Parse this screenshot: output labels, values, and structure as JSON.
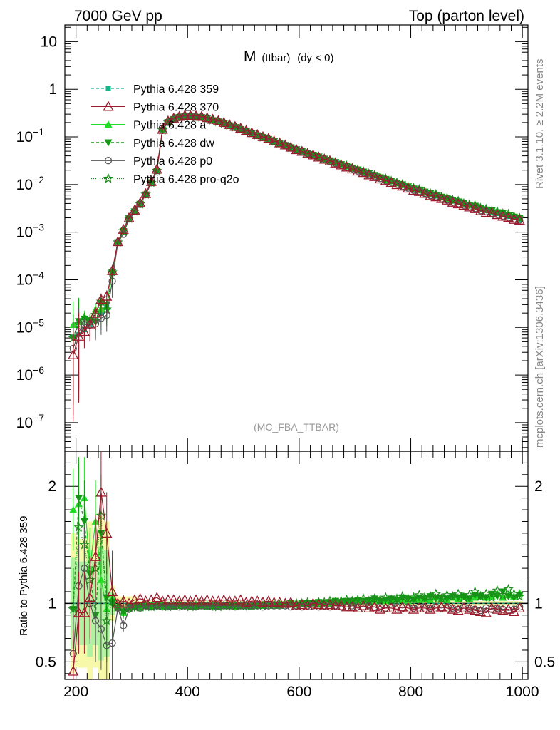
{
  "header": {
    "left": "7000 GeV pp",
    "right": "Top (parton level)"
  },
  "side_labels": {
    "rivet": "Rivet 3.1.10, ≥ 2.2M events",
    "mcplots": "mcplots.cern.ch [arXiv:1306.3436]"
  },
  "watermark": "(MC_FBA_TTBAR)",
  "plot_title": {
    "main": "M",
    "sub": "(ttbar)",
    "cond": "(dy < 0)"
  },
  "ratio_ylabel": "Ratio to Pythia 6.428 359",
  "chart_data": [
    {
      "type": "line",
      "panel": "main",
      "title": "M (ttbar) (dy < 0)",
      "xlabel": "",
      "ylabel": "",
      "xlim": [
        180,
        1010
      ],
      "ylim_log10": [
        -7.6,
        1.35
      ],
      "yscale": "log",
      "y_ticks": [
        {
          "v": -7,
          "label": "10",
          "exp": "−7"
        },
        {
          "v": -6,
          "label": "10",
          "exp": "−6"
        },
        {
          "v": -5,
          "label": "10",
          "exp": "−5"
        },
        {
          "v": -4,
          "label": "10",
          "exp": "−4"
        },
        {
          "v": -3,
          "label": "10",
          "exp": "−3"
        },
        {
          "v": -2,
          "label": "10",
          "exp": "−2"
        },
        {
          "v": -1,
          "label": "10",
          "exp": "−1"
        },
        {
          "v": 0,
          "label": "1",
          "exp": ""
        },
        {
          "v": 1,
          "label": "10",
          "exp": ""
        }
      ],
      "x_ticks": [
        200,
        400,
        600,
        800,
        1000
      ],
      "legend_position": "top-left",
      "x": [
        195,
        205,
        215,
        225,
        235,
        245,
        255,
        265,
        275,
        285,
        295,
        305,
        315,
        325,
        335,
        345,
        355,
        365,
        375,
        385,
        395,
        405,
        415,
        425,
        435,
        445,
        455,
        465,
        475,
        485,
        495,
        505,
        515,
        525,
        535,
        545,
        555,
        565,
        575,
        585,
        595,
        605,
        615,
        625,
        635,
        645,
        655,
        665,
        675,
        685,
        695,
        705,
        715,
        725,
        735,
        745,
        755,
        765,
        775,
        785,
        795,
        805,
        815,
        825,
        835,
        845,
        855,
        865,
        875,
        885,
        895,
        905,
        915,
        925,
        935,
        945,
        955,
        965,
        975,
        985,
        995
      ],
      "reference_log10": [
        -5.2,
        -5.15,
        -5.05,
        -4.95,
        -4.85,
        -4.7,
        -4.55,
        -3.85,
        -3.2,
        -2.95,
        -2.7,
        -2.55,
        -2.4,
        -2.2,
        -1.95,
        -1.7,
        -0.85,
        -0.68,
        -0.62,
        -0.58,
        -0.56,
        -0.56,
        -0.57,
        -0.58,
        -0.61,
        -0.64,
        -0.67,
        -0.71,
        -0.75,
        -0.79,
        -0.83,
        -0.87,
        -0.92,
        -0.96,
        -1.0,
        -1.04,
        -1.09,
        -1.13,
        -1.17,
        -1.22,
        -1.26,
        -1.3,
        -1.34,
        -1.38,
        -1.42,
        -1.46,
        -1.5,
        -1.54,
        -1.58,
        -1.62,
        -1.66,
        -1.7,
        -1.74,
        -1.78,
        -1.82,
        -1.86,
        -1.9,
        -1.94,
        -1.98,
        -2.02,
        -2.06,
        -2.1,
        -2.13,
        -2.17,
        -2.21,
        -2.24,
        -2.28,
        -2.31,
        -2.35,
        -2.38,
        -2.42,
        -2.45,
        -2.48,
        -2.52,
        -2.55,
        -2.58,
        -2.61,
        -2.64,
        -2.67,
        -2.7,
        -2.73
      ],
      "series": [
        {
          "name": "Pythia 6.428 359",
          "color": "#10b88a",
          "dash": "4,3",
          "marker": "square"
        },
        {
          "name": "Pythia 6.428 370",
          "color": "#9b1b2c",
          "dash": "",
          "marker": "triangle-open"
        },
        {
          "name": "Pythia 6.428 a",
          "color": "#22dd22",
          "dash": "",
          "marker": "triangle"
        },
        {
          "name": "Pythia 6.428 dw",
          "color": "#139a13",
          "dash": "4,3",
          "marker": "triangle-down"
        },
        {
          "name": "Pythia 6.428 p0",
          "color": "#555555",
          "dash": "",
          "marker": "circle-open"
        },
        {
          "name": "Pythia 6.428 pro-q2o",
          "color": "#1c8c1c",
          "dash": "1,2",
          "marker": "star-open"
        }
      ],
      "series_ratio": [
        [
          1,
          1,
          1,
          1,
          1,
          1,
          1,
          1,
          1,
          1,
          1,
          1,
          1,
          1,
          1,
          1,
          1,
          1,
          1,
          1,
          1,
          1,
          1,
          1,
          1,
          1,
          1,
          1,
          1,
          1,
          1,
          1,
          1,
          1,
          1,
          1,
          1,
          1,
          1,
          1,
          1,
          1,
          1,
          1,
          1,
          1,
          1,
          1,
          1,
          1,
          1,
          1,
          1,
          1,
          1,
          1,
          1,
          1,
          1,
          1,
          1,
          1,
          1,
          1,
          1,
          1,
          1,
          1,
          1,
          1,
          1,
          1,
          1,
          1,
          1,
          1,
          1,
          1,
          1,
          1,
          1
        ],
        [
          0.42,
          0.92,
          0.92,
          1.05,
          1.4,
          1.95,
          1.6,
          1.1,
          1.0,
          1.02,
          1.0,
          1.03,
          1.04,
          1.02,
          1.03,
          1.05,
          1.02,
          1.03,
          1.03,
          1.02,
          1.03,
          1.02,
          1.03,
          1.02,
          1.03,
          1.02,
          1.02,
          1.03,
          1.02,
          1.02,
          1.03,
          1.01,
          1.02,
          1.02,
          1.01,
          1.02,
          1.01,
          1.01,
          1.0,
          1.01,
          0.98,
          0.99,
          0.98,
          1.0,
          0.99,
          0.98,
          0.99,
          0.98,
          0.98,
          0.97,
          0.97,
          0.96,
          0.98,
          0.96,
          0.97,
          0.95,
          0.96,
          0.96,
          0.95,
          0.97,
          0.96,
          0.95,
          0.96,
          0.96,
          0.95,
          0.96,
          0.97,
          0.96,
          0.95,
          0.94,
          0.96,
          0.95,
          0.94,
          0.93,
          0.92,
          0.96,
          0.95,
          0.94,
          0.95,
          0.93,
          0.96
        ],
        [
          1.8,
          1.85,
          1.9,
          1.3,
          1.7,
          1.2,
          0.95,
          1.05,
          0.96,
          0.92,
          0.95,
          0.97,
          0.96,
          0.98,
          0.97,
          0.98,
          0.97,
          0.98,
          0.97,
          0.98,
          0.98,
          0.97,
          0.98,
          0.98,
          0.97,
          0.98,
          0.97,
          0.98,
          0.98,
          0.97,
          0.98,
          0.98,
          0.97,
          0.98,
          0.98,
          0.99,
          0.98,
          0.98,
          0.99,
          0.99,
          0.99,
          1.0,
          0.99,
          1.0,
          0.99,
          1.0,
          1.0,
          1.01,
          1.02,
          1.01,
          1.02,
          1.01,
          1.02,
          1.03,
          1.02,
          1.03,
          1.02,
          1.03,
          1.04,
          1.03,
          1.02,
          1.04,
          1.03,
          1.04,
          1.03,
          1.05,
          1.04,
          1.03,
          1.05,
          1.04,
          1.06,
          1.04,
          1.05,
          1.07,
          1.05,
          1.06,
          1.08,
          1.05,
          1.07,
          1.06,
          1.09
        ],
        [
          0.95,
          1.9,
          1.7,
          1.25,
          0.9,
          1.6,
          1.05,
          1.0,
          0.96,
          0.93,
          0.97,
          0.96,
          0.98,
          0.97,
          0.98,
          0.97,
          0.98,
          0.97,
          0.98,
          0.98,
          0.97,
          0.98,
          0.97,
          0.98,
          0.98,
          0.97,
          0.98,
          0.98,
          0.97,
          0.98,
          0.98,
          0.97,
          0.98,
          0.98,
          0.99,
          0.98,
          0.99,
          0.99,
          0.99,
          1.0,
          0.99,
          1.0,
          1.0,
          1.0,
          1.01,
          1.0,
          1.01,
          1.02,
          1.01,
          1.02,
          1.02,
          1.03,
          1.02,
          1.03,
          1.04,
          1.02,
          1.03,
          1.04,
          1.03,
          1.05,
          1.04,
          1.03,
          1.05,
          1.04,
          1.06,
          1.04,
          1.05,
          1.04,
          1.06,
          1.05,
          1.06,
          1.04,
          1.07,
          1.06,
          1.05,
          1.08,
          1.06,
          1.1,
          1.06,
          1.05,
          1.07
        ],
        [
          0.57,
          1.15,
          1.3,
          1.0,
          0.85,
          0.78,
          0.64,
          0.66,
          0.96,
          0.81,
          0.95,
          0.97,
          0.96,
          0.98,
          0.97,
          0.98,
          0.97,
          0.98,
          0.98,
          0.97,
          0.98,
          0.98,
          0.97,
          0.98,
          0.98,
          0.97,
          0.98,
          0.98,
          0.98,
          0.97,
          0.98,
          0.98,
          0.98,
          0.98,
          0.97,
          0.98,
          0.98,
          0.98,
          0.98,
          0.97,
          0.98,
          0.97,
          0.98,
          0.98,
          0.97,
          0.98,
          0.97,
          0.98,
          0.97,
          0.97,
          0.98,
          0.97,
          0.97,
          0.98,
          0.97,
          0.97,
          0.96,
          0.97,
          0.97,
          0.96,
          0.97,
          0.96,
          0.97,
          0.97,
          0.96,
          0.97,
          0.96,
          0.97,
          0.96,
          0.95,
          0.97,
          0.96,
          0.95,
          0.94,
          0.96,
          0.95,
          0.96,
          0.95,
          0.94,
          0.95,
          0.97
        ],
        [
          0.95,
          1.65,
          1.5,
          1.2,
          1.3,
          1.75,
          0.85,
          1.02,
          0.97,
          0.94,
          0.96,
          0.97,
          0.97,
          0.98,
          0.97,
          0.98,
          0.98,
          0.97,
          0.98,
          0.98,
          0.98,
          0.97,
          0.98,
          0.98,
          0.98,
          0.98,
          0.97,
          0.98,
          0.98,
          0.98,
          0.98,
          0.98,
          0.98,
          0.99,
          0.98,
          0.99,
          0.99,
          0.99,
          1.0,
          0.99,
          1.0,
          1.0,
          1.01,
          1.0,
          1.01,
          1.01,
          1.02,
          1.01,
          1.02,
          1.03,
          1.02,
          1.03,
          1.04,
          1.02,
          1.04,
          1.03,
          1.05,
          1.03,
          1.04,
          1.06,
          1.04,
          1.05,
          1.07,
          1.05,
          1.06,
          1.08,
          1.04,
          1.07,
          1.06,
          1.08,
          1.05,
          1.07,
          1.1,
          1.06,
          1.08,
          1.05,
          1.11,
          1.07,
          1.12,
          1.08,
          1.06
        ]
      ]
    },
    {
      "type": "line",
      "panel": "ratio",
      "title": "",
      "xlabel": "",
      "ylabel": "Ratio to Pythia 6.428 359",
      "xlim": [
        180,
        1010
      ],
      "ylim": [
        0.35,
        2.3
      ],
      "y_ticks": [
        0.5,
        1,
        2
      ],
      "x_ticks": [
        200,
        400,
        600,
        800,
        1000
      ]
    }
  ]
}
